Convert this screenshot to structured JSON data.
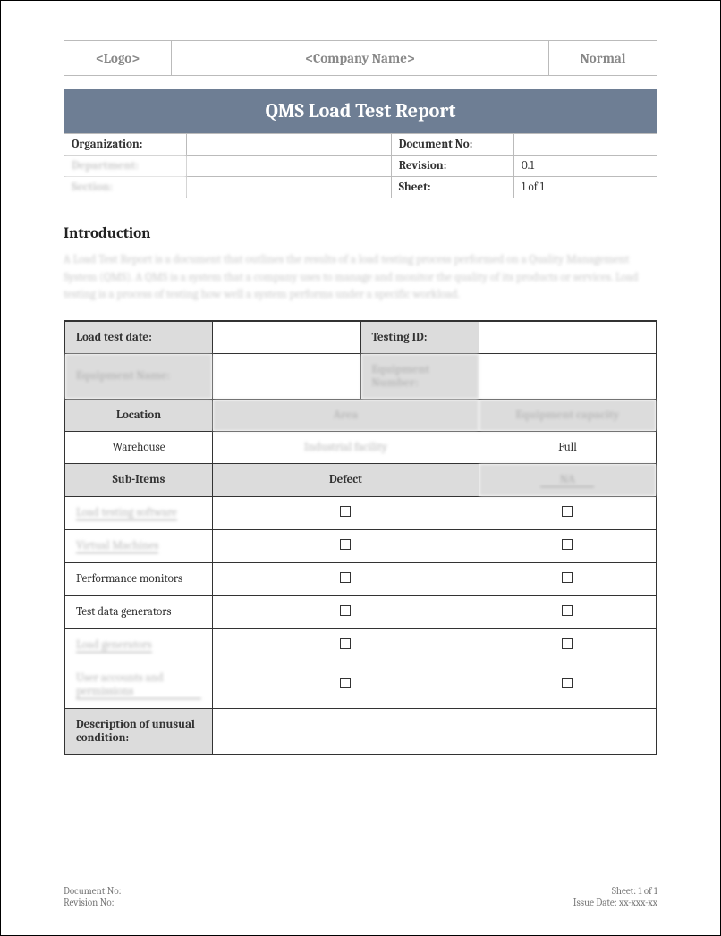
{
  "header": {
    "logo": "<Logo>",
    "company": "<Company Name>",
    "status": "Normal"
  },
  "title": "QMS Load Test Report",
  "meta": {
    "rows": [
      {
        "l1": "Organization:",
        "v1": "",
        "l2": "Document No:",
        "v2": "",
        "blur1": false
      },
      {
        "l1": "Department:",
        "v1": "",
        "l2": "Revision:",
        "v2": "0.1",
        "blur1": true
      },
      {
        "l1": "Section:",
        "v1": "",
        "l2": "Sheet:",
        "v2": "1 of 1",
        "blur1": true
      }
    ]
  },
  "introduction": {
    "heading": "Introduction",
    "body": "A Load Test Report is a document that outlines the results of a load testing process performed on a Quality Management System (QMS). A QMS is a system that a company uses to manage and monitor the quality of its products or services. Load testing is a process of testing how well a system performs under a specific workload."
  },
  "form": {
    "row1": {
      "l1": "Load test date:",
      "v1": "",
      "l2": "Testing ID:",
      "v2": ""
    },
    "row2": {
      "l1": "Equipment Name:",
      "v1": "",
      "l2": "Equipment Number:",
      "v2": ""
    },
    "headers1": {
      "c1": "Location",
      "c2": "Area",
      "c3": "Equipment capacity"
    },
    "values1": {
      "c1": "Warehouse",
      "c2": "Industrial facility",
      "c3": "Full"
    },
    "headers2": {
      "c1": "Sub-Items",
      "c2": "Defect",
      "c3": "NA"
    },
    "subitems": [
      {
        "name": "Load testing software",
        "blur": true
      },
      {
        "name": "Virtual Machines",
        "blur": true
      },
      {
        "name": "Performance monitors",
        "blur": false
      },
      {
        "name": "Test data generators",
        "blur": false
      },
      {
        "name": "Load generators",
        "blur": true
      },
      {
        "name": "User accounts and permissions",
        "blur": true
      }
    ],
    "desc_label": "Description of unusual condition:"
  },
  "footer": {
    "doc_no_label": "Document No:",
    "rev_no_label": "Revision No:",
    "sheet_label": "Sheet: 1 of 1",
    "issue_label": "Issue Date: xx-xxx-xx"
  },
  "colors": {
    "title_bg": "#6e7e94",
    "shade_bg": "#dcdcdc",
    "border": "#333333"
  }
}
